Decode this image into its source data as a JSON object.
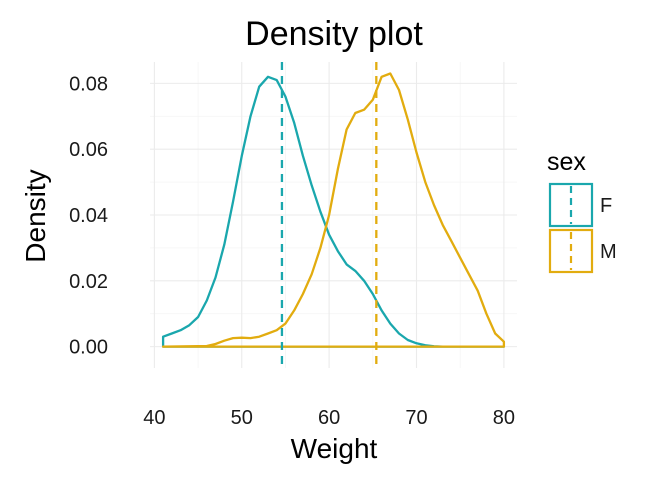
{
  "chart_data": {
    "type": "line",
    "title": "Density plot",
    "xlabel": "Weight",
    "ylabel": "Density",
    "xlim": [
      39.5,
      81.5
    ],
    "ylim": [
      -0.0065,
      0.0865
    ],
    "x_ticks": [
      40,
      50,
      60,
      70,
      80
    ],
    "x_tick_labels": [
      "40",
      "50",
      "60",
      "70",
      "80"
    ],
    "y_ticks": [
      0.0,
      0.02,
      0.04,
      0.06,
      0.08
    ],
    "y_tick_labels": [
      "0.00",
      "0.02",
      "0.04",
      "0.06",
      "0.08"
    ],
    "grid": true,
    "legend": {
      "title": "sex",
      "position": "right"
    },
    "series": [
      {
        "name": "F",
        "color": "#1AA7AD",
        "mean": 54.6,
        "points": [
          [
            41.0,
            0.0
          ],
          [
            41.0,
            0.003
          ],
          [
            42,
            0.004
          ],
          [
            43,
            0.005
          ],
          [
            44,
            0.0065
          ],
          [
            45,
            0.009
          ],
          [
            46,
            0.014
          ],
          [
            47,
            0.021
          ],
          [
            48,
            0.031
          ],
          [
            49,
            0.044
          ],
          [
            50,
            0.058
          ],
          [
            51,
            0.07
          ],
          [
            52,
            0.079
          ],
          [
            53,
            0.082
          ],
          [
            54,
            0.081
          ],
          [
            55,
            0.076
          ],
          [
            56,
            0.068
          ],
          [
            57,
            0.058
          ],
          [
            58,
            0.049
          ],
          [
            59,
            0.041
          ],
          [
            60,
            0.034
          ],
          [
            61,
            0.029
          ],
          [
            62,
            0.025
          ],
          [
            63,
            0.023
          ],
          [
            64,
            0.02
          ],
          [
            65,
            0.016
          ],
          [
            66,
            0.011
          ],
          [
            67,
            0.007
          ],
          [
            68,
            0.004
          ],
          [
            69,
            0.002
          ],
          [
            70,
            0.001
          ],
          [
            71,
            0.0004
          ],
          [
            72,
            0.0001
          ],
          [
            73,
            0.0
          ],
          [
            80,
            0.0
          ]
        ]
      },
      {
        "name": "M",
        "color": "#E2AC0F",
        "mean": 65.4,
        "points": [
          [
            41,
            0.0
          ],
          [
            46,
            0.0002
          ],
          [
            47,
            0.0008
          ],
          [
            48,
            0.0018
          ],
          [
            49,
            0.0026
          ],
          [
            50,
            0.0027
          ],
          [
            51,
            0.0026
          ],
          [
            52,
            0.003
          ],
          [
            53,
            0.004
          ],
          [
            54,
            0.005
          ],
          [
            55,
            0.007
          ],
          [
            56,
            0.011
          ],
          [
            57,
            0.016
          ],
          [
            58,
            0.022
          ],
          [
            59,
            0.03
          ],
          [
            60,
            0.04
          ],
          [
            61,
            0.054
          ],
          [
            62,
            0.066
          ],
          [
            63,
            0.071
          ],
          [
            64,
            0.072
          ],
          [
            65,
            0.075
          ],
          [
            66,
            0.082
          ],
          [
            67,
            0.083
          ],
          [
            68,
            0.078
          ],
          [
            69,
            0.069
          ],
          [
            70,
            0.059
          ],
          [
            71,
            0.05
          ],
          [
            72,
            0.043
          ],
          [
            73,
            0.037
          ],
          [
            74,
            0.032
          ],
          [
            75,
            0.027
          ],
          [
            76,
            0.022
          ],
          [
            77,
            0.017
          ],
          [
            78,
            0.01
          ],
          [
            79,
            0.004
          ],
          [
            80,
            0.0015
          ],
          [
            80,
            0.0
          ]
        ]
      }
    ]
  }
}
